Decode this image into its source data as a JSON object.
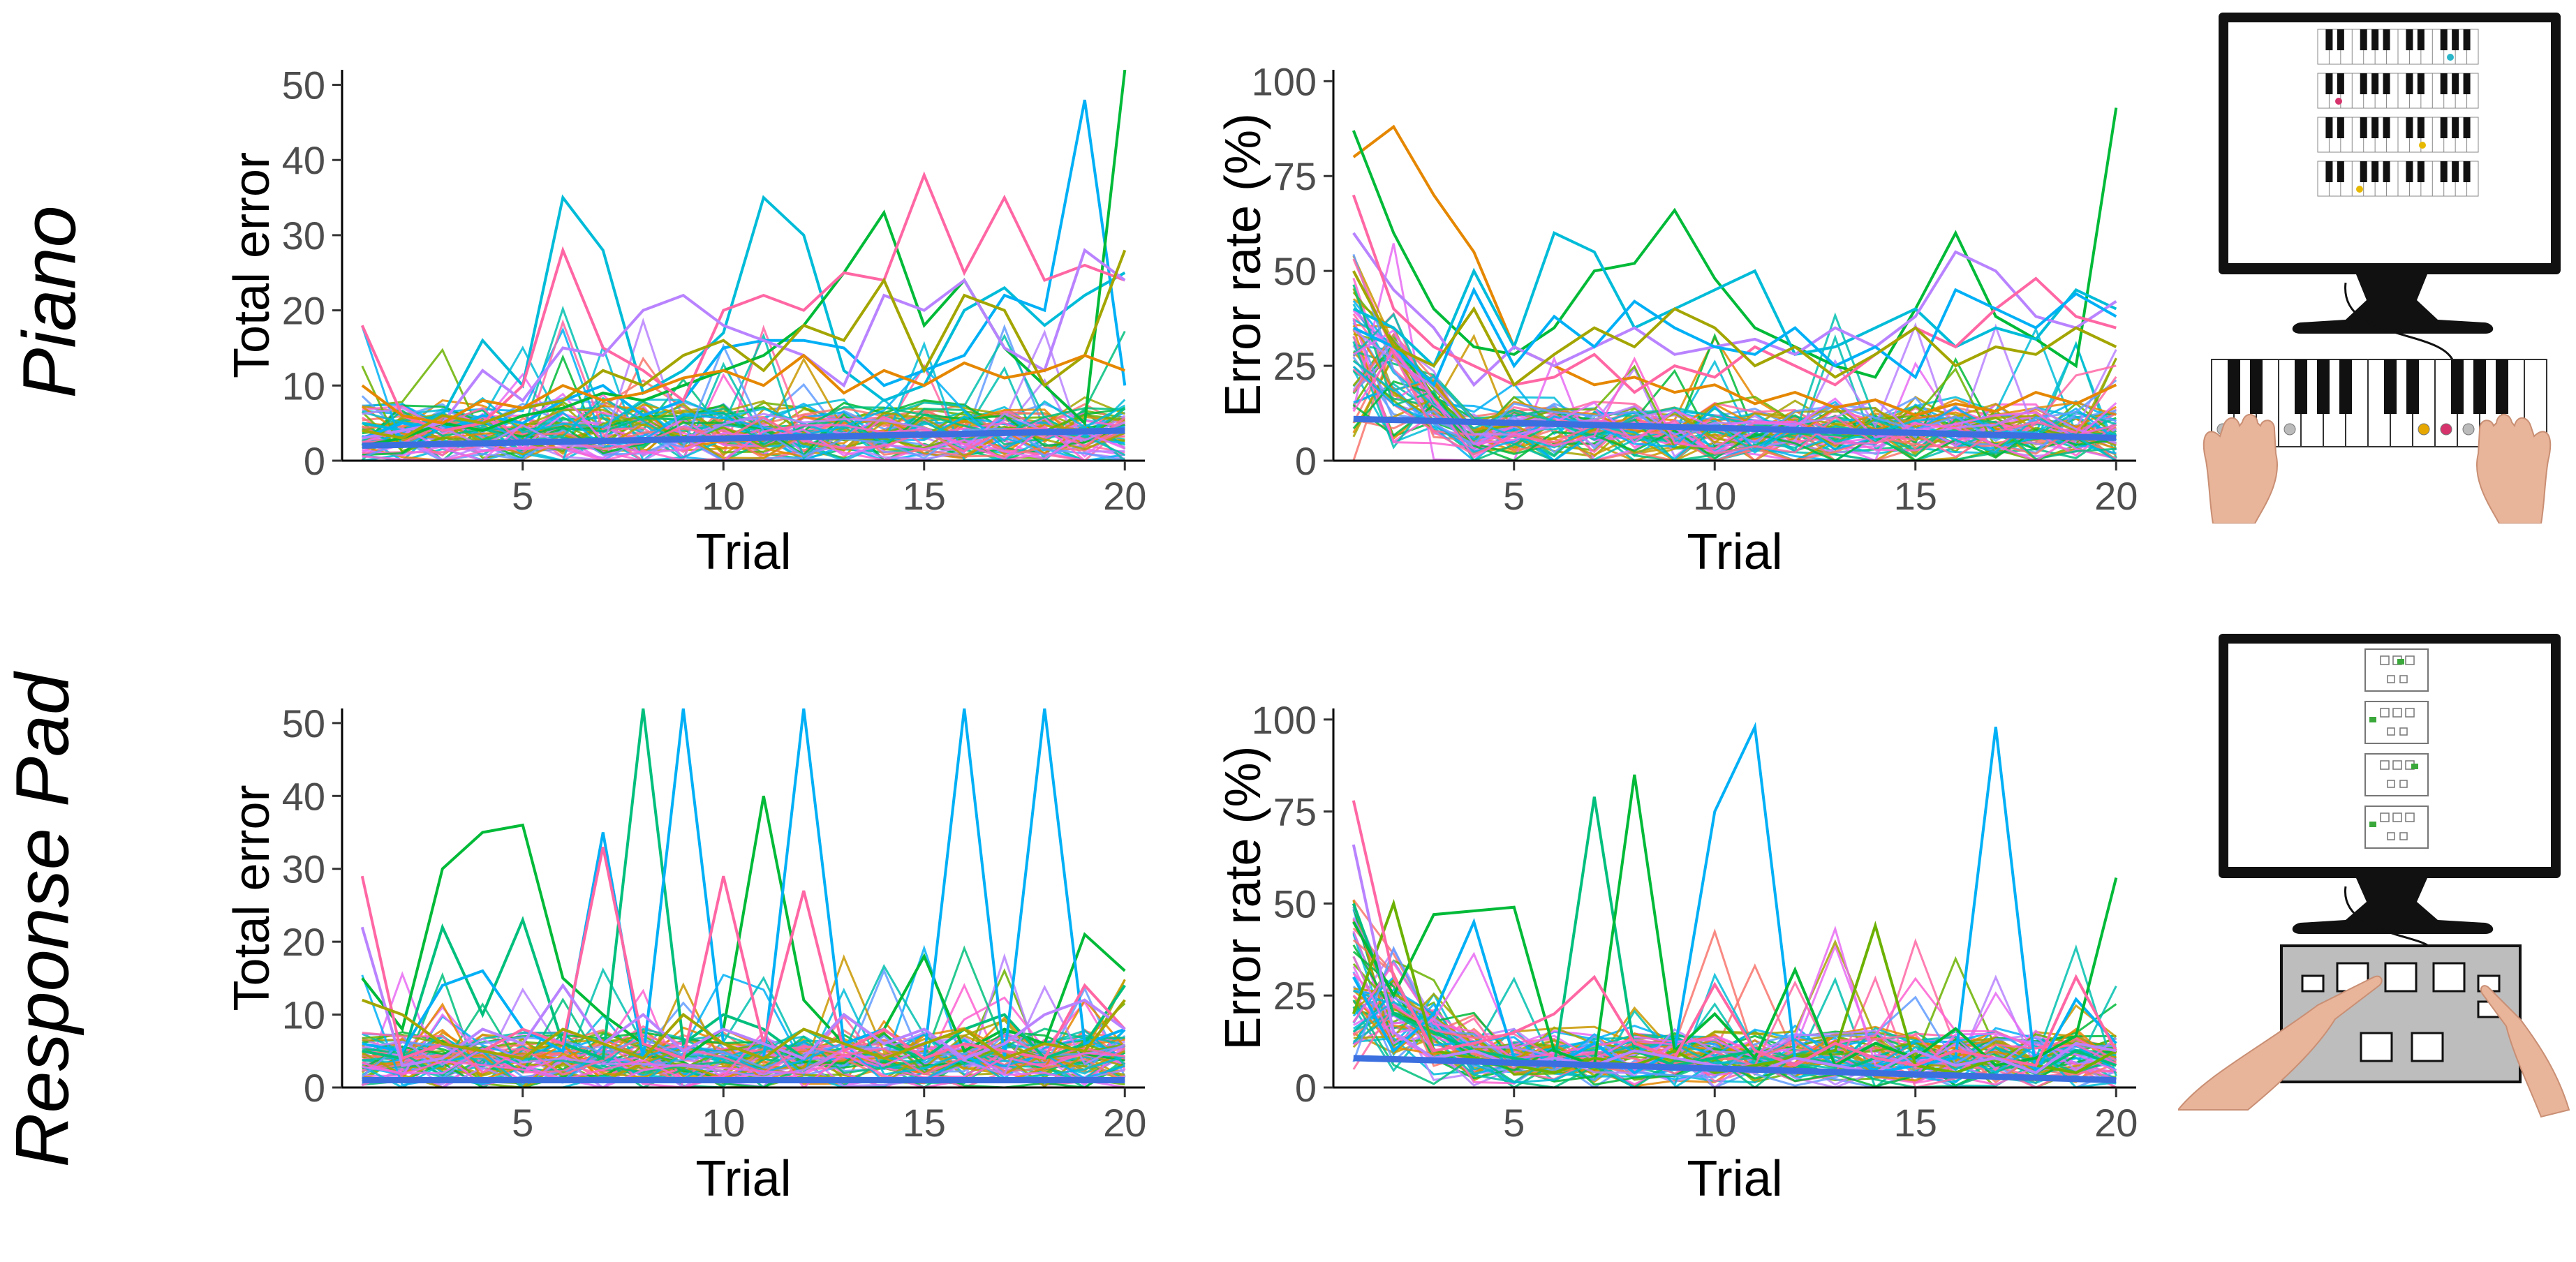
{
  "rows": [
    {
      "label": "Piano",
      "illustration": "piano-setup-icon"
    },
    {
      "label": "Response Pad",
      "illustration": "response-pad-setup-icon"
    }
  ],
  "colors": {
    "series_palette": [
      "#F8766D",
      "#E58700",
      "#C99800",
      "#A3A500",
      "#6BB100",
      "#00BA38",
      "#00BF7D",
      "#00C0AF",
      "#00BCD8",
      "#00B0F6",
      "#619CFF",
      "#B983FF",
      "#E76BF3",
      "#FD61D1",
      "#FF67A4"
    ],
    "mean_line": "#3B6FE0",
    "axis": "#000000",
    "tick_label": "#4D4D4D"
  },
  "chart_data": [
    {
      "id": "piano-total-error",
      "type": "line",
      "title": "",
      "xlabel": "Trial",
      "ylabel": "Total error",
      "xlim": [
        0.5,
        20.5
      ],
      "ylim": [
        0,
        52
      ],
      "xticks": [
        5,
        10,
        15,
        20
      ],
      "yticks": [
        0,
        10,
        20,
        30,
        40,
        50
      ],
      "grid": false,
      "legend": "none",
      "n_participants": 60,
      "mean_trend": {
        "x": [
          1,
          20
        ],
        "y": [
          2,
          4
        ]
      },
      "highlight_series": [
        {
          "color": "#00BCD8",
          "values": [
            5,
            4,
            6,
            16,
            10,
            35,
            28,
            9,
            12,
            17,
            35,
            30,
            12,
            8,
            10,
            20,
            23,
            18,
            22,
            25
          ]
        },
        {
          "color": "#00B0F6",
          "values": [
            3,
            5,
            4,
            6,
            5,
            8,
            10,
            6,
            8,
            15,
            16,
            16,
            15,
            10,
            12,
            14,
            22,
            20,
            48,
            10
          ]
        },
        {
          "color": "#00BA38",
          "values": [
            2,
            3,
            5,
            4,
            6,
            7,
            9,
            8,
            10,
            12,
            14,
            18,
            25,
            33,
            18,
            24,
            15,
            10,
            5,
            52
          ]
        },
        {
          "color": "#FF67A4",
          "values": [
            18,
            6,
            4,
            5,
            10,
            28,
            15,
            12,
            8,
            20,
            22,
            20,
            25,
            24,
            38,
            25,
            35,
            24,
            26,
            24
          ]
        },
        {
          "color": "#B983FF",
          "values": [
            3,
            4,
            5,
            12,
            8,
            15,
            14,
            20,
            22,
            18,
            16,
            14,
            10,
            22,
            20,
            24,
            15,
            12,
            28,
            24
          ]
        },
        {
          "color": "#A3A500",
          "values": [
            4,
            3,
            6,
            5,
            7,
            8,
            12,
            10,
            14,
            16,
            12,
            18,
            16,
            24,
            12,
            22,
            20,
            10,
            14,
            28
          ]
        },
        {
          "color": "#E58700",
          "values": [
            10,
            6,
            5,
            8,
            7,
            10,
            8,
            9,
            11,
            12,
            10,
            14,
            9,
            12,
            10,
            13,
            11,
            12,
            14,
            12
          ]
        }
      ]
    },
    {
      "id": "piano-error-rate",
      "type": "line",
      "title": "",
      "xlabel": "Trial",
      "ylabel": "Error rate (%)",
      "xlim": [
        0.5,
        20.5
      ],
      "ylim": [
        0,
        103
      ],
      "xticks": [
        5,
        10,
        15,
        20
      ],
      "yticks": [
        0,
        25,
        50,
        75,
        100
      ],
      "grid": false,
      "legend": "none",
      "n_participants": 60,
      "mean_trend": {
        "x": [
          1,
          20
        ],
        "y": [
          11,
          6
        ]
      },
      "highlight_series": [
        {
          "color": "#E58700",
          "values": [
            80,
            88,
            70,
            55,
            30,
            25,
            20,
            22,
            18,
            20,
            15,
            18,
            14,
            16,
            12,
            15,
            13,
            18,
            15,
            20
          ]
        },
        {
          "color": "#00BA38",
          "values": [
            87,
            60,
            40,
            30,
            28,
            35,
            50,
            52,
            66,
            48,
            35,
            30,
            25,
            22,
            40,
            60,
            38,
            32,
            25,
            93
          ]
        },
        {
          "color": "#00BCD8",
          "values": [
            40,
            35,
            25,
            50,
            30,
            60,
            55,
            35,
            40,
            45,
            50,
            28,
            30,
            35,
            40,
            30,
            35,
            32,
            45,
            40
          ]
        },
        {
          "color": "#B983FF",
          "values": [
            60,
            45,
            35,
            20,
            30,
            25,
            30,
            35,
            28,
            30,
            32,
            28,
            35,
            30,
            38,
            55,
            50,
            38,
            35,
            42
          ]
        },
        {
          "color": "#FF67A4",
          "values": [
            70,
            40,
            30,
            25,
            20,
            22,
            28,
            18,
            25,
            22,
            30,
            25,
            20,
            28,
            35,
            30,
            40,
            48,
            38,
            35
          ]
        },
        {
          "color": "#00B0F6",
          "values": [
            35,
            30,
            20,
            45,
            25,
            38,
            30,
            42,
            35,
            30,
            28,
            35,
            25,
            30,
            22,
            45,
            40,
            35,
            44,
            38
          ]
        },
        {
          "color": "#A3A500",
          "values": [
            50,
            30,
            25,
            40,
            20,
            28,
            35,
            30,
            40,
            35,
            25,
            30,
            22,
            28,
            35,
            25,
            30,
            28,
            35,
            30
          ]
        }
      ]
    },
    {
      "id": "pad-total-error",
      "type": "line",
      "title": "",
      "xlabel": "Trial",
      "ylabel": "Total error",
      "xlim": [
        0.5,
        20.5
      ],
      "ylim": [
        0,
        52
      ],
      "xticks": [
        5,
        10,
        15,
        20
      ],
      "yticks": [
        0,
        10,
        20,
        30,
        40,
        50
      ],
      "grid": false,
      "legend": "none",
      "n_participants": 60,
      "mean_trend": {
        "x": [
          1,
          20
        ],
        "y": [
          1,
          1
        ]
      },
      "highlight_series": [
        {
          "color": "#00BA38",
          "values": [
            15,
            8,
            30,
            35,
            36,
            15,
            10,
            6,
            4,
            8,
            40,
            12,
            6,
            8,
            18,
            5,
            8,
            6,
            21,
            16
          ]
        },
        {
          "color": "#00BF7D",
          "values": [
            5,
            4,
            22,
            10,
            23,
            6,
            4,
            52,
            6,
            10,
            8,
            4,
            10,
            6,
            4,
            8,
            10,
            4,
            6,
            14
          ]
        },
        {
          "color": "#00B0F6",
          "values": [
            6,
            5,
            14,
            16,
            8,
            5,
            35,
            4,
            52,
            6,
            4,
            52,
            6,
            8,
            4,
            52,
            4,
            52,
            6,
            8
          ]
        },
        {
          "color": "#FF67A4",
          "values": [
            29,
            4,
            6,
            5,
            8,
            6,
            33,
            6,
            4,
            29,
            6,
            27,
            5,
            8,
            4,
            6,
            5,
            4,
            14,
            8
          ]
        },
        {
          "color": "#B983FF",
          "values": [
            22,
            3,
            4,
            8,
            6,
            14,
            6,
            10,
            5,
            8,
            6,
            4,
            10,
            6,
            8,
            4,
            6,
            10,
            12,
            8
          ]
        },
        {
          "color": "#A3A500",
          "values": [
            12,
            10,
            6,
            5,
            4,
            8,
            6,
            4,
            10,
            6,
            4,
            8,
            6,
            4,
            6,
            8,
            4,
            6,
            5,
            12
          ]
        }
      ]
    },
    {
      "id": "pad-error-rate",
      "type": "line",
      "title": "",
      "xlabel": "Trial",
      "ylabel": "Error rate (%)",
      "xlim": [
        0.5,
        20.5
      ],
      "ylim": [
        0,
        103
      ],
      "xticks": [
        5,
        10,
        15,
        20
      ],
      "yticks": [
        0,
        25,
        50,
        75,
        100
      ],
      "grid": false,
      "legend": "none",
      "n_participants": 60,
      "mean_trend": {
        "x": [
          1,
          20
        ],
        "y": [
          8,
          2
        ]
      },
      "highlight_series": [
        {
          "color": "#00B0F6",
          "values": [
            30,
            10,
            20,
            45,
            8,
            6,
            12,
            4,
            10,
            75,
            98,
            8,
            6,
            4,
            6,
            8,
            98,
            4,
            24,
            12
          ]
        },
        {
          "color": "#00BF7D",
          "values": [
            50,
            20,
            15,
            10,
            8,
            6,
            79,
            10,
            6,
            8,
            10,
            6,
            4,
            8,
            6,
            4,
            8,
            4,
            10,
            6
          ]
        },
        {
          "color": "#00BA38",
          "values": [
            45,
            25,
            47,
            48,
            49,
            10,
            6,
            85,
            10,
            20,
            8,
            32,
            6,
            12,
            8,
            16,
            6,
            8,
            14,
            57
          ]
        },
        {
          "color": "#6BB100",
          "values": [
            20,
            50,
            10,
            8,
            6,
            4,
            8,
            6,
            10,
            4,
            6,
            8,
            10,
            44,
            6,
            4,
            8,
            6,
            4,
            10
          ]
        },
        {
          "color": "#FF67A4",
          "values": [
            78,
            30,
            10,
            12,
            15,
            20,
            30,
            12,
            8,
            28,
            10,
            6,
            12,
            8,
            6,
            10,
            8,
            6,
            30,
            10
          ]
        },
        {
          "color": "#B983FF",
          "values": [
            66,
            15,
            8,
            10,
            6,
            8,
            6,
            10,
            8,
            6,
            4,
            8,
            6,
            4,
            10,
            6,
            8,
            4,
            12,
            10
          ]
        }
      ]
    }
  ]
}
